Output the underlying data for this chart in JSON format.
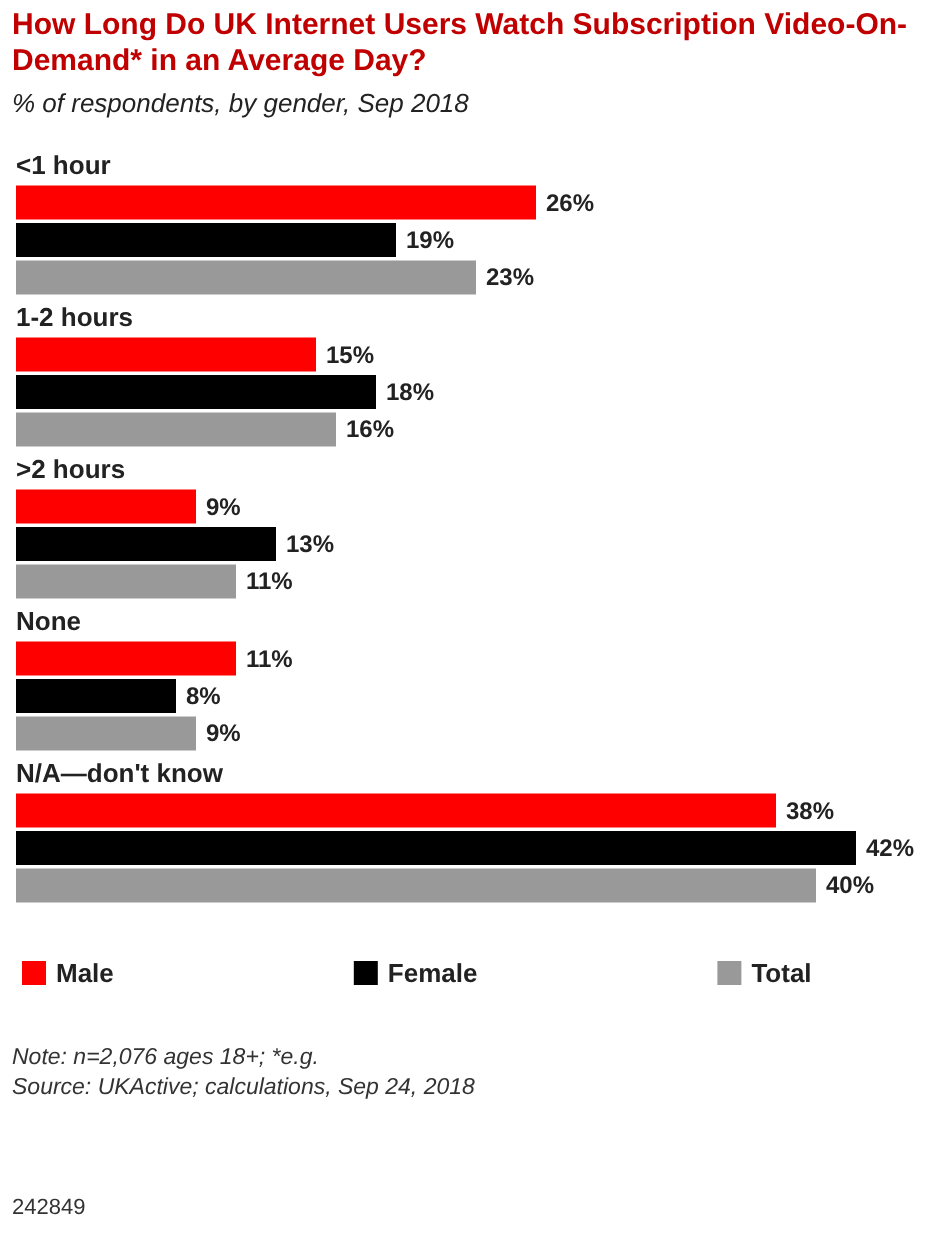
{
  "chart_data": {
    "type": "bar",
    "orientation": "horizontal",
    "title": "How Long Do UK Internet Users Watch Subscription Video-On-Demand* in an Average Day?",
    "subtitle": "% of respondents, by gender, Sep 2018",
    "categories": [
      "<1 hour",
      "1-2 hours",
      ">2 hours",
      "None",
      "N/A—don't know"
    ],
    "series": [
      {
        "name": "Male",
        "color": "#ff0000",
        "values": [
          26,
          15,
          9,
          11,
          38
        ],
        "value_labels": [
          "26%",
          "15%",
          "9%",
          "11%",
          "38%"
        ]
      },
      {
        "name": "Female",
        "color": "#000000",
        "values": [
          19,
          18,
          13,
          8,
          42
        ],
        "value_labels": [
          "19%",
          "18%",
          "13%",
          "8%",
          "42%"
        ]
      },
      {
        "name": "Total",
        "color": "#999999",
        "values": [
          23,
          16,
          11,
          9,
          40
        ],
        "value_labels": [
          "23%",
          "16%",
          "11%",
          "9%",
          "40%"
        ]
      }
    ],
    "legend": "bottom",
    "tick_labels": "y",
    "annotations": [
      "Note: n=2,076 ages 18+; *e.g.",
      "Source: UKActive; calculations, Sep 24, 2018",
      "242849"
    ]
  }
}
